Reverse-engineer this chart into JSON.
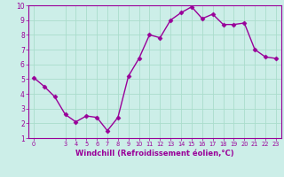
{
  "x": [
    0,
    1,
    2,
    3,
    4,
    5,
    6,
    7,
    8,
    9,
    10,
    11,
    12,
    13,
    14,
    15,
    16,
    17,
    18,
    19,
    20,
    21,
    22,
    23
  ],
  "y": [
    5.1,
    4.5,
    3.8,
    2.6,
    2.1,
    2.5,
    2.4,
    1.5,
    2.4,
    5.2,
    6.4,
    8.0,
    7.8,
    9.0,
    9.5,
    9.9,
    9.1,
    9.4,
    8.7,
    8.7,
    8.8,
    7.0,
    6.5,
    6.4
  ],
  "line_color": "#990099",
  "marker": "D",
  "marker_size": 2.5,
  "bg_color": "#cceee8",
  "grid_color": "#aaddcc",
  "xlabel": "Windchill (Refroidissement éolien,°C)",
  "xlabel_color": "#990099",
  "tick_color": "#990099",
  "ylim": [
    1,
    10
  ],
  "xlim": [
    -0.5,
    23.5
  ],
  "yticks": [
    1,
    2,
    3,
    4,
    5,
    6,
    7,
    8,
    9,
    10
  ],
  "xticks": [
    0,
    3,
    4,
    5,
    6,
    7,
    8,
    9,
    10,
    11,
    12,
    13,
    14,
    15,
    16,
    17,
    18,
    19,
    20,
    21,
    22,
    23
  ],
  "spine_color": "#990099",
  "linewidth": 1.0
}
